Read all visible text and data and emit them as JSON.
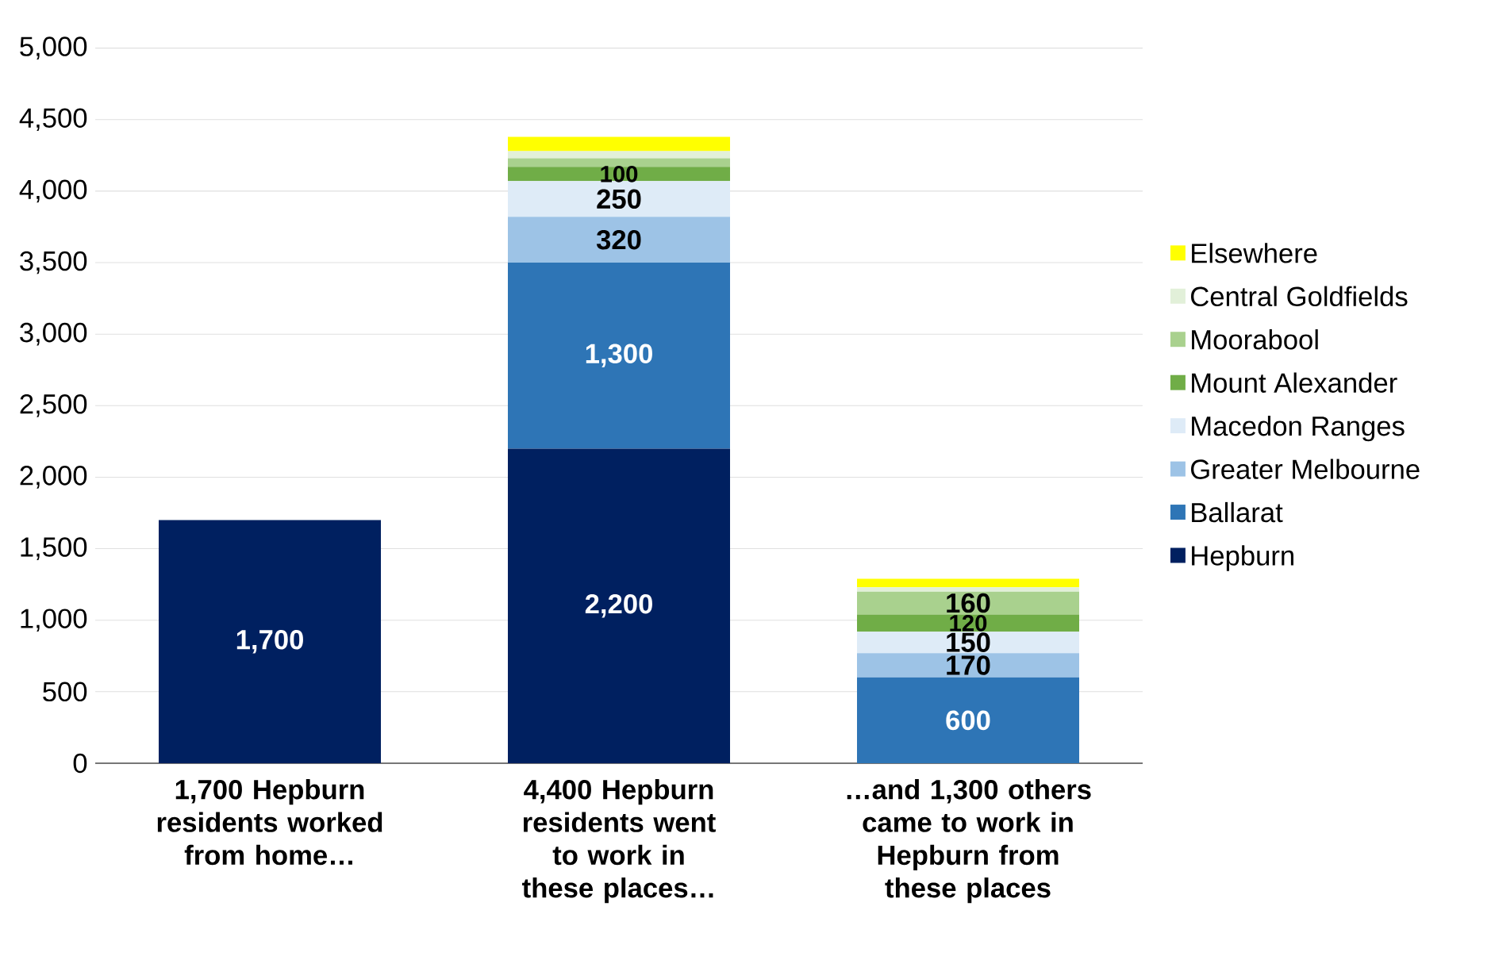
{
  "chart_data": {
    "type": "bar",
    "stacked": true,
    "categories": [
      "1,700 Hepburn residents worked from home…",
      "4,400 Hepburn residents went to work in these places…",
      "…and 1,300 others came to work in Hepburn from these places"
    ],
    "series": [
      {
        "name": "Hepburn",
        "color": "#002060",
        "values": [
          1700,
          2200,
          null
        ],
        "value_labels": [
          "1,700",
          "2,200",
          null
        ]
      },
      {
        "name": "Ballarat",
        "color": "#2e75b6",
        "values": [
          null,
          1300,
          600
        ],
        "value_labels": [
          null,
          "1,300",
          "600"
        ]
      },
      {
        "name": "Greater Melbourne",
        "color": "#9dc3e6",
        "values": [
          null,
          320,
          170
        ],
        "value_labels": [
          null,
          "320",
          "170"
        ]
      },
      {
        "name": "Macedon Ranges",
        "color": "#deebf7",
        "values": [
          null,
          250,
          150
        ],
        "value_labels": [
          null,
          "250",
          "150"
        ]
      },
      {
        "name": "Mount Alexander",
        "color": "#70ad47",
        "values": [
          null,
          100,
          120
        ],
        "value_labels": [
          null,
          "100",
          "120"
        ]
      },
      {
        "name": "Moorabool",
        "color": "#a9d18e",
        "values": [
          null,
          60,
          160
        ],
        "value_labels": [
          null,
          null,
          "160"
        ]
      },
      {
        "name": "Central Goldfields",
        "color": "#e2f0d9",
        "values": [
          null,
          50,
          30
        ]
      },
      {
        "name": "Elsewhere",
        "color": "#ffff00",
        "values": [
          null,
          100,
          60
        ]
      }
    ],
    "ylim": [
      0,
      5000
    ],
    "yticks": [
      0,
      {
        "value": 500,
        "label": "500"
      },
      {
        "value": 1000,
        "label": "1,000"
      },
      {
        "value": 1500,
        "label": "1,500"
      },
      {
        "value": 2000,
        "label": "2,000"
      },
      {
        "value": 2500,
        "label": "2,500"
      },
      {
        "value": 3000,
        "label": "3,000"
      },
      {
        "value": 3500,
        "label": "3,500"
      },
      {
        "value": 4000,
        "label": "4,000"
      },
      {
        "value": 4500,
        "label": "4,500"
      },
      {
        "value": 5000,
        "label": "5,000"
      }
    ],
    "grid": "y",
    "legend": "right"
  }
}
